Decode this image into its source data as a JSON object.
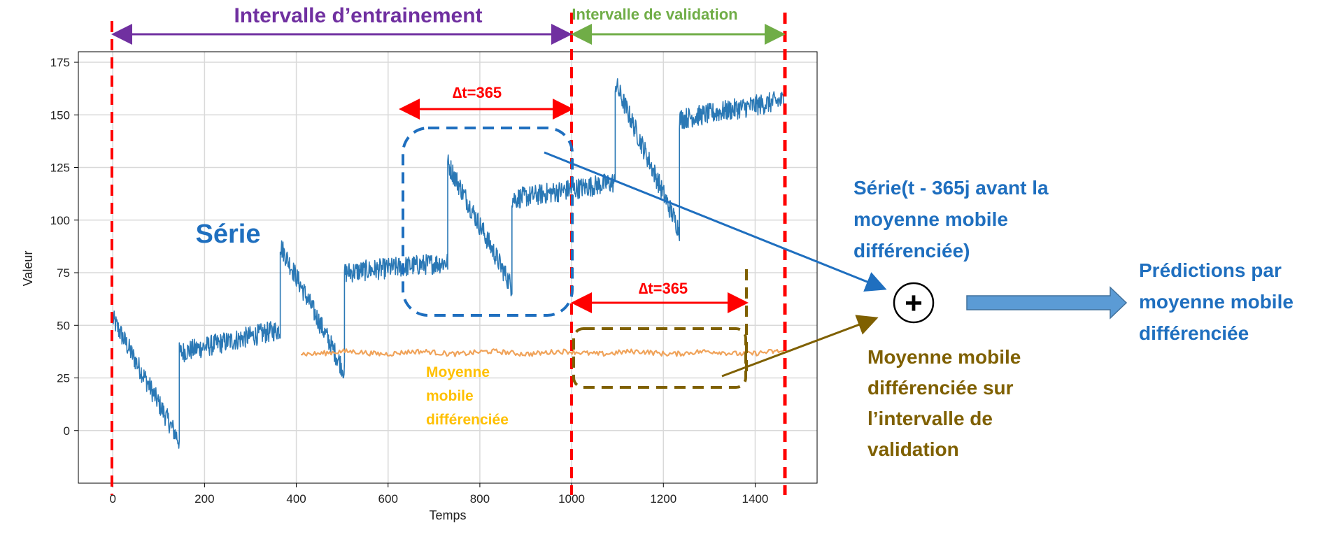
{
  "chart_data": {
    "type": "line",
    "xlabel": "Temps",
    "ylabel": "Valeur",
    "xlim": [
      -75,
      1535
    ],
    "ylim": [
      -25,
      180
    ],
    "x_ticks": [
      0,
      200,
      400,
      600,
      800,
      1000,
      1200,
      1400
    ],
    "y_ticks": [
      0,
      25,
      50,
      75,
      100,
      125,
      150,
      175
    ],
    "grid": true,
    "series": [
      {
        "name": "Série",
        "color": "#2a78b5",
        "segments": [
          {
            "x_start": 0,
            "x_end": 145,
            "y_start": 53,
            "y_end": -5,
            "noise": 5
          },
          {
            "x_start": 145,
            "x_end": 365,
            "y_start": 37,
            "y_end": 48,
            "noise": 5
          },
          {
            "x_start": 365,
            "x_end": 505,
            "y_start": 88,
            "y_end": 28,
            "noise": 5
          },
          {
            "x_start": 505,
            "x_end": 730,
            "y_start": 75,
            "y_end": 80,
            "noise": 5
          },
          {
            "x_start": 730,
            "x_end": 870,
            "y_start": 127,
            "y_end": 68,
            "noise": 5
          },
          {
            "x_start": 870,
            "x_end": 1095,
            "y_start": 110,
            "y_end": 118,
            "noise": 5
          },
          {
            "x_start": 1095,
            "x_end": 1235,
            "y_start": 165,
            "y_end": 95,
            "noise": 5
          },
          {
            "x_start": 1235,
            "x_end": 1465,
            "y_start": 148,
            "y_end": 157,
            "noise": 5
          }
        ]
      },
      {
        "name": "Moyenne mobile différenciée",
        "color": "#f0a35a",
        "x_start": 410,
        "x_end": 1465,
        "level": 37,
        "noise": 1.2
      }
    ]
  },
  "headers": {
    "training": "Intervalle d’entrainement",
    "validation": "Intervalle de validation"
  },
  "annotations": {
    "delta_top": "∆t=365",
    "delta_bottom": "∆t=365",
    "serie_label": "Série",
    "ma_label": [
      "Moyenne",
      "mobile",
      "différenciée"
    ],
    "right_serie": [
      "Série(t - 365j avant la",
      "moyenne mobile",
      "différenciée)"
    ],
    "right_ma": [
      "Moyenne mobile",
      "différenciée sur",
      "l’intervalle de",
      "validation"
    ],
    "predictions": [
      "Prédictions par",
      "moyenne mobile",
      "différenciée"
    ],
    "plus": "+"
  },
  "colors": {
    "training": "#7030a0",
    "validation": "#70ad47",
    "red": "#ff0000",
    "blue_text": "#1f6fbf",
    "orange_text": "#ffc000",
    "olive": "#7f6000",
    "arrow_blue": "#5b9bd5"
  }
}
